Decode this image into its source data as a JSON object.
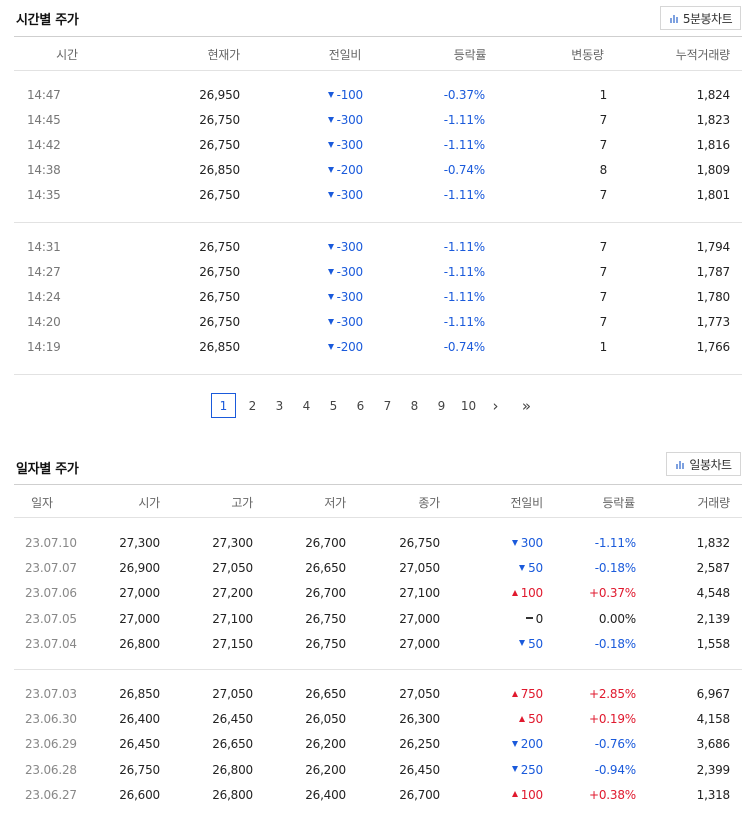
{
  "hourly": {
    "title": "시간별 주가",
    "chart_button": "5분봉차트",
    "headers": [
      "시간",
      "현재가",
      "전일비",
      "등락률",
      "변동량",
      "누적거래량"
    ],
    "groups": [
      [
        {
          "time": "14:47",
          "price": "26,950",
          "dir": "down",
          "change": "-100",
          "rate": "-0.37%",
          "vol": "1",
          "cum": "1,824"
        },
        {
          "time": "14:45",
          "price": "26,750",
          "dir": "down",
          "change": "-300",
          "rate": "-1.11%",
          "vol": "7",
          "cum": "1,823"
        },
        {
          "time": "14:42",
          "price": "26,750",
          "dir": "down",
          "change": "-300",
          "rate": "-1.11%",
          "vol": "7",
          "cum": "1,816"
        },
        {
          "time": "14:38",
          "price": "26,850",
          "dir": "down",
          "change": "-200",
          "rate": "-0.74%",
          "vol": "8",
          "cum": "1,809"
        },
        {
          "time": "14:35",
          "price": "26,750",
          "dir": "down",
          "change": "-300",
          "rate": "-1.11%",
          "vol": "7",
          "cum": "1,801"
        }
      ],
      [
        {
          "time": "14:31",
          "price": "26,750",
          "dir": "down",
          "change": "-300",
          "rate": "-1.11%",
          "vol": "7",
          "cum": "1,794"
        },
        {
          "time": "14:27",
          "price": "26,750",
          "dir": "down",
          "change": "-300",
          "rate": "-1.11%",
          "vol": "7",
          "cum": "1,787"
        },
        {
          "time": "14:24",
          "price": "26,750",
          "dir": "down",
          "change": "-300",
          "rate": "-1.11%",
          "vol": "7",
          "cum": "1,780"
        },
        {
          "time": "14:20",
          "price": "26,750",
          "dir": "down",
          "change": "-300",
          "rate": "-1.11%",
          "vol": "7",
          "cum": "1,773"
        },
        {
          "time": "14:19",
          "price": "26,850",
          "dir": "down",
          "change": "-200",
          "rate": "-0.74%",
          "vol": "1",
          "cum": "1,766"
        }
      ]
    ]
  },
  "pagination": {
    "current": "1",
    "pages": [
      "1",
      "2",
      "3",
      "4",
      "5",
      "6",
      "7",
      "8",
      "9",
      "10"
    ],
    "next": "›",
    "last": "»"
  },
  "daily": {
    "title": "일자별 주가",
    "chart_button": "일봉차트",
    "headers": [
      "일자",
      "시가",
      "고가",
      "저가",
      "종가",
      "전일비",
      "등락률",
      "거래량"
    ],
    "groups": [
      [
        {
          "date": "23.07.10",
          "open": "27,300",
          "high": "27,300",
          "low": "26,700",
          "close": "26,750",
          "dir": "down",
          "change": "300",
          "rate": "-1.11%",
          "vol": "1,832"
        },
        {
          "date": "23.07.07",
          "open": "26,900",
          "high": "27,050",
          "low": "26,650",
          "close": "27,050",
          "dir": "down",
          "change": "50",
          "rate": "-0.18%",
          "vol": "2,587"
        },
        {
          "date": "23.07.06",
          "open": "27,000",
          "high": "27,200",
          "low": "26,700",
          "close": "27,100",
          "dir": "up",
          "change": "100",
          "rate": "+0.37%",
          "vol": "4,548"
        },
        {
          "date": "23.07.05",
          "open": "27,000",
          "high": "27,100",
          "low": "26,750",
          "close": "27,000",
          "dir": "flat",
          "change": "0",
          "rate": "0.00%",
          "vol": "2,139"
        },
        {
          "date": "23.07.04",
          "open": "26,800",
          "high": "27,150",
          "low": "26,750",
          "close": "27,000",
          "dir": "down",
          "change": "50",
          "rate": "-0.18%",
          "vol": "1,558"
        }
      ],
      [
        {
          "date": "23.07.03",
          "open": "26,850",
          "high": "27,050",
          "low": "26,650",
          "close": "27,050",
          "dir": "up",
          "change": "750",
          "rate": "+2.85%",
          "vol": "6,967"
        },
        {
          "date": "23.06.30",
          "open": "26,400",
          "high": "26,450",
          "low": "26,050",
          "close": "26,300",
          "dir": "up",
          "change": "50",
          "rate": "+0.19%",
          "vol": "4,158"
        },
        {
          "date": "23.06.29",
          "open": "26,450",
          "high": "26,650",
          "low": "26,200",
          "close": "26,250",
          "dir": "down",
          "change": "200",
          "rate": "-0.76%",
          "vol": "3,686"
        },
        {
          "date": "23.06.28",
          "open": "26,750",
          "high": "26,800",
          "low": "26,200",
          "close": "26,450",
          "dir": "down",
          "change": "250",
          "rate": "-0.94%",
          "vol": "2,399"
        },
        {
          "date": "23.06.27",
          "open": "26,600",
          "high": "26,800",
          "low": "26,400",
          "close": "26,700",
          "dir": "up",
          "change": "100",
          "rate": "+0.38%",
          "vol": "1,318"
        }
      ]
    ]
  },
  "colors": {
    "down": "#1a5adb",
    "up": "#e0192e",
    "flat": "#222222",
    "active_page": "#1a5adb"
  },
  "icons": {
    "chart_button": "bar-chart-icon",
    "next": "chevron-right-icon",
    "last": "double-chevron-right-icon"
  }
}
